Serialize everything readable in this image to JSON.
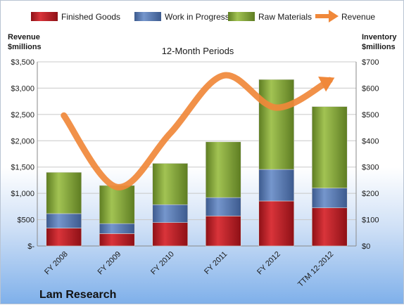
{
  "chart_data": {
    "type": "bar",
    "subtitle": "12-Month Periods",
    "categories": [
      "FY 2008",
      "FY 2009",
      "FY 2010",
      "FY 2011",
      "FY 2012",
      "TTM 12-2012"
    ],
    "stacked": true,
    "series": [
      {
        "name": "Finished Goods",
        "axis": "right",
        "color": "#c0272d",
        "values": [
          68,
          47,
          89,
          114,
          171,
          145
        ]
      },
      {
        "name": "Work in Progress",
        "axis": "right",
        "color": "#5a7fb8",
        "values": [
          55,
          38,
          68,
          70,
          120,
          75
        ]
      },
      {
        "name": "Raw Materials",
        "axis": "right",
        "color": "#8fb040",
        "values": [
          157,
          145,
          157,
          212,
          342,
          310
        ]
      }
    ],
    "line_series": {
      "name": "Revenue",
      "axis": "left",
      "color": "#f0883a",
      "values": [
        2480,
        1120,
        2140,
        3240,
        2630,
        3150
      ]
    },
    "left_axis": {
      "title_line1": "Revenue",
      "title_line2": "$millions",
      "ylim": [
        0,
        3500
      ],
      "ticks": [
        "$-",
        "$500",
        "$1,000",
        "$1,500",
        "$2,000",
        "$2,500",
        "$3,000",
        "$3,500"
      ]
    },
    "right_axis": {
      "title_line1": "Inventory",
      "title_line2": "$millions",
      "ylim": [
        0,
        700
      ],
      "ticks": [
        "$0",
        "$100",
        "$200",
        "$300",
        "$400",
        "$500",
        "$600",
        "$700"
      ]
    },
    "grid": true,
    "legend_position": "top"
  },
  "company": "Lam Research"
}
